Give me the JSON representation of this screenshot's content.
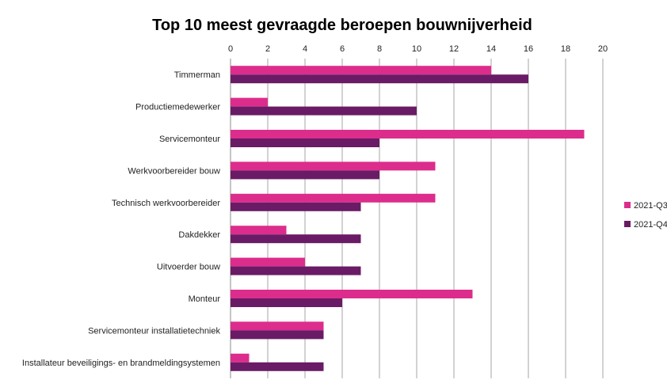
{
  "chart_data": {
    "type": "bar",
    "orientation": "horizontal",
    "title": "Top 10 meest gevraagde beroepen bouwnijverheid",
    "xlabel": "",
    "ylabel": "",
    "xlim": [
      0,
      20
    ],
    "x_ticks": [
      0,
      2,
      4,
      6,
      8,
      10,
      12,
      14,
      16,
      18,
      20
    ],
    "x_axis_position": "top",
    "grid": true,
    "legend_position": "right",
    "categories": [
      "Timmerman",
      "Productiemedewerker",
      "Servicemonteur",
      "Werkvoorbereider bouw",
      "Technisch werkvoorbereider",
      "Dakdekker",
      "Uitvoerder bouw",
      "Monteur",
      "Servicemonteur installatietechniek",
      "Installateur beveiligings- en brandmeldingsystemen"
    ],
    "series": [
      {
        "name": "2021-Q3",
        "color": "#dc2d8c",
        "values": [
          14,
          2,
          19,
          11,
          11,
          3,
          4,
          13,
          5,
          1
        ]
      },
      {
        "name": "2021-Q4",
        "color": "#6a1b65",
        "values": [
          16,
          10,
          8,
          8,
          7,
          7,
          7,
          6,
          5,
          5
        ]
      }
    ]
  }
}
